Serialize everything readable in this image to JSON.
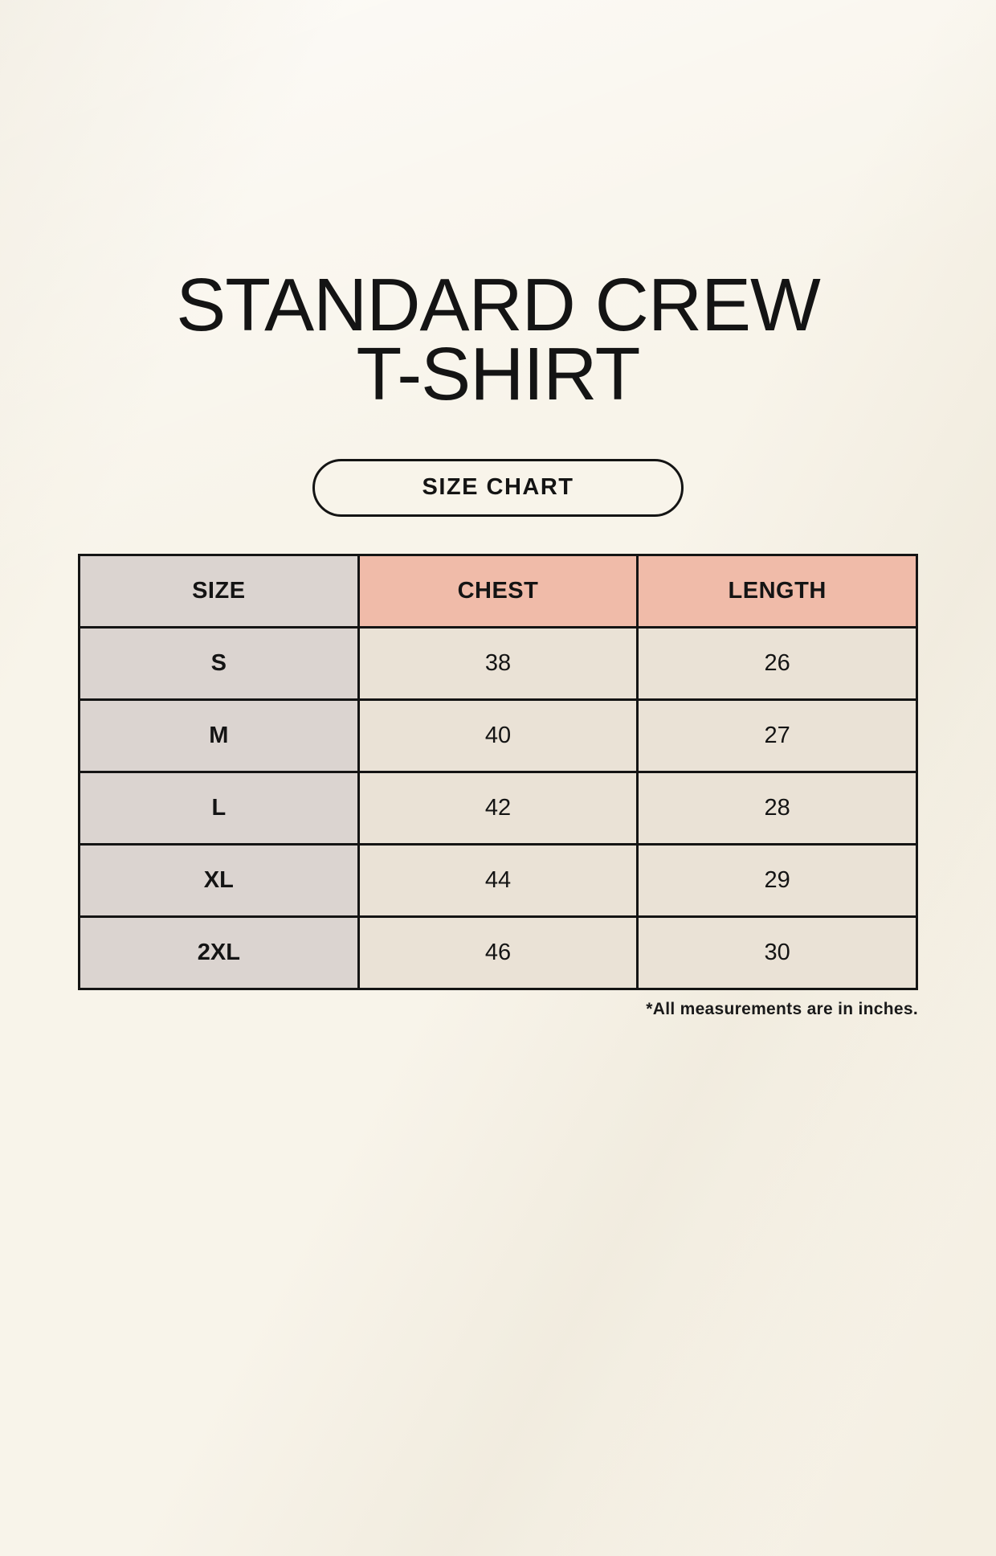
{
  "header": {
    "title_line1": "STANDARD CREW",
    "title_line2": "T-SHIRT",
    "badge_label": "SIZE CHART"
  },
  "chart_data": {
    "type": "table",
    "title": "STANDARD CREW T-SHIRT",
    "subtitle": "SIZE CHART",
    "columns": [
      "SIZE",
      "CHEST",
      "LENGTH"
    ],
    "rows": [
      [
        "S",
        38,
        26
      ],
      [
        "M",
        40,
        27
      ],
      [
        "L",
        42,
        28
      ],
      [
        "XL",
        44,
        29
      ],
      [
        "2XL",
        46,
        30
      ]
    ],
    "units": "inches",
    "note": "*All measurements are in inches."
  },
  "footer": {
    "note": "*All measurements are in inches."
  },
  "colors": {
    "background": "#f8f4ea",
    "size_column_bg": "#dbd4d0",
    "accent_header_bg": "#f0bba9",
    "data_cell_bg": "#eae2d6",
    "border": "#141414",
    "text": "#141414"
  }
}
